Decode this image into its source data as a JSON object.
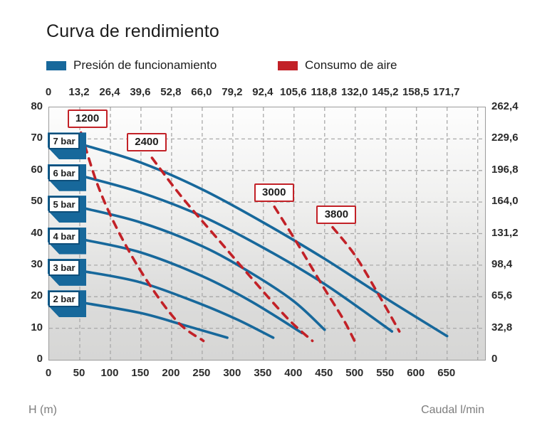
{
  "chart_data": {
    "type": "line",
    "title": "Curva de rendimiento",
    "colors": {
      "pressure": "#17689b",
      "pressure_dark": "#0d4e7a",
      "air": "#c22127",
      "grid": "#a9a9a9"
    },
    "legend": [
      {
        "label": "Presión de funcionamiento",
        "color": "#17689b"
      },
      {
        "label": "Consumo de aire",
        "color": "#c22127"
      }
    ],
    "axes": {
      "xlim": [
        0,
        712
      ],
      "ylim": [
        0,
        80
      ],
      "grid": {
        "x_step": 50,
        "x_last": 700,
        "y_step": 10,
        "y_last": 70
      },
      "x_bottom": {
        "label": "Caudal l/min",
        "values": [
          0,
          50,
          100,
          150,
          200,
          250,
          300,
          350,
          400,
          450,
          500,
          550,
          600,
          650
        ],
        "ticks": [
          "0",
          "50",
          "100",
          "150",
          "200",
          "250",
          "300",
          "350",
          "400",
          "450",
          "500",
          "550",
          "600",
          "650"
        ]
      },
      "x_top": {
        "values": [
          0,
          50,
          100,
          150,
          200,
          250,
          300,
          350,
          400,
          450,
          500,
          550,
          600,
          650
        ],
        "ticks": [
          "0",
          "13,2",
          "26,4",
          "39,6",
          "52,8",
          "66,0",
          "79,2",
          "92,4",
          "105,6",
          "118,8",
          "132,0",
          "145,2",
          "158,5",
          "171,7"
        ]
      },
      "y_left": {
        "label": "H (m)",
        "values": [
          80,
          70,
          60,
          50,
          40,
          30,
          20,
          10,
          0
        ],
        "ticks": [
          "80",
          "70",
          "60",
          "50",
          "40",
          "30",
          "20",
          "10",
          "0"
        ]
      },
      "y_right": {
        "values": [
          80,
          70,
          60,
          50,
          40,
          30,
          20,
          10,
          0
        ],
        "ticks": [
          "262,4",
          "229,6",
          "196,8",
          "164,0",
          "131,2",
          "98,4",
          "65,6",
          "32,8",
          "0"
        ]
      }
    },
    "pressure_curves": [
      {
        "label": "7 bar",
        "tag_h": 70,
        "points": [
          [
            58,
            68
          ],
          [
            150,
            62.5
          ],
          [
            250,
            54
          ],
          [
            350,
            43.5
          ],
          [
            450,
            32
          ],
          [
            550,
            19.5
          ],
          [
            650,
            7.5
          ]
        ]
      },
      {
        "label": "6 bar",
        "tag_h": 60,
        "points": [
          [
            58,
            58
          ],
          [
            150,
            53
          ],
          [
            250,
            45.5
          ],
          [
            350,
            35.5
          ],
          [
            450,
            24
          ],
          [
            560,
            9
          ]
        ]
      },
      {
        "label": "5 bar",
        "tag_h": 50,
        "points": [
          [
            58,
            48
          ],
          [
            150,
            43.5
          ],
          [
            250,
            36
          ],
          [
            330,
            27.5
          ],
          [
            400,
            18.5
          ],
          [
            450,
            9.5
          ]
        ]
      },
      {
        "label": "4 bar",
        "tag_h": 40,
        "points": [
          [
            58,
            38
          ],
          [
            150,
            34
          ],
          [
            250,
            26.5
          ],
          [
            330,
            18.5
          ],
          [
            413,
            8.5
          ]
        ]
      },
      {
        "label": "3 bar",
        "tag_h": 30,
        "points": [
          [
            58,
            28
          ],
          [
            150,
            24.5
          ],
          [
            250,
            17.5
          ],
          [
            310,
            12.5
          ],
          [
            366,
            7
          ]
        ]
      },
      {
        "label": "2 bar",
        "tag_h": 20,
        "points": [
          [
            58,
            18
          ],
          [
            150,
            14.8
          ],
          [
            220,
            11
          ],
          [
            291,
            7
          ]
        ]
      }
    ],
    "air_curves": [
      {
        "label": "1200",
        "label_at": [
          60,
          76.5
        ],
        "points": [
          [
            52,
            72
          ],
          [
            80,
            55
          ],
          [
            115,
            40
          ],
          [
            160,
            25
          ],
          [
            210,
            12
          ],
          [
            252,
            6
          ]
        ]
      },
      {
        "label": "2400",
        "label_at": [
          157,
          69
        ],
        "points": [
          [
            168,
            64
          ],
          [
            215,
            52
          ],
          [
            270,
            39.5
          ],
          [
            330,
            26
          ],
          [
            390,
            13
          ],
          [
            430,
            6
          ]
        ]
      },
      {
        "label": "3000",
        "label_at": [
          365,
          53
        ],
        "points": [
          [
            368,
            48.5
          ],
          [
            405,
            37
          ],
          [
            445,
            24
          ],
          [
            480,
            13
          ],
          [
            500,
            5.5
          ]
        ]
      },
      {
        "label": "3800",
        "label_at": [
          467,
          46
        ],
        "points": [
          [
            463,
            42
          ],
          [
            500,
            33
          ],
          [
            540,
            20
          ],
          [
            572,
            9
          ]
        ]
      }
    ]
  }
}
